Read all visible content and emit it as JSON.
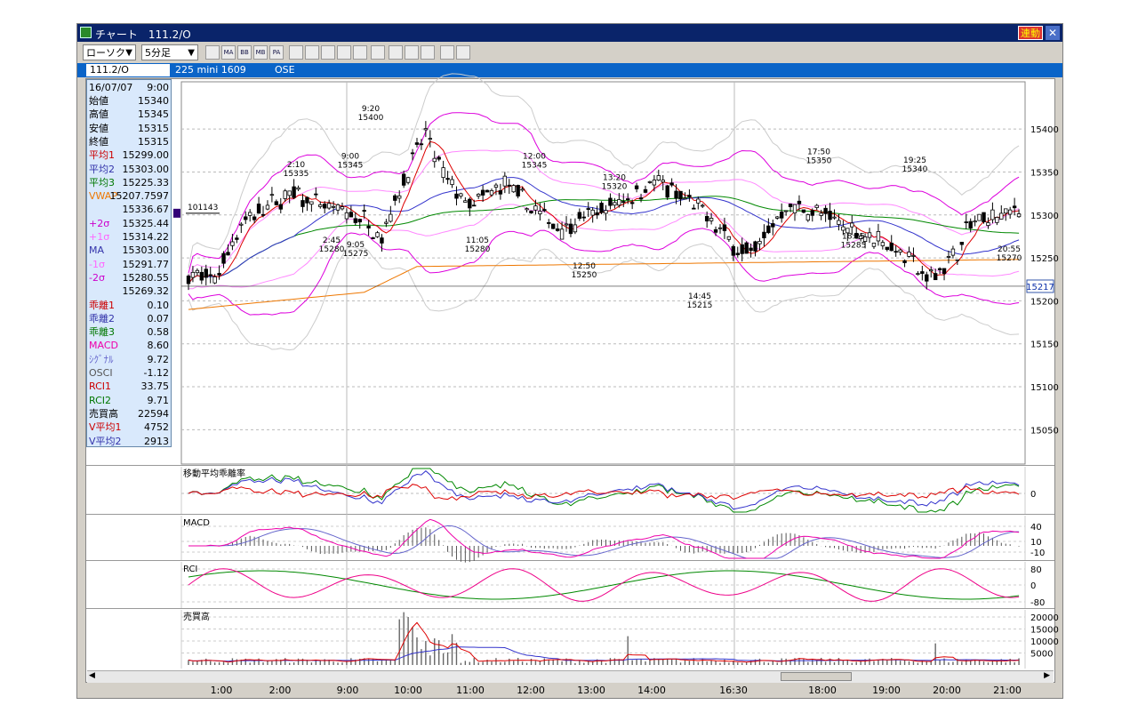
{
  "window": {
    "title": "チャート　111.2/O",
    "link_button": "連動",
    "close_glyph": "✕"
  },
  "toolbar": {
    "chart_type": "ローソク",
    "interval": "5分足",
    "icons": [
      "chart-settings-icon",
      "ma-icon",
      "bb-icon",
      "mb-icon",
      "pa-icon",
      "line-chart-icon",
      "candle-chart-icon",
      "fib-icon",
      "zoom-icon",
      "analysis-icon",
      "bars-icon",
      "pen-icon",
      "cursor-icon",
      "eraser-icon",
      "search-icon",
      "tool-icon"
    ],
    "icon_labels": [
      "",
      "MA",
      "BB",
      "MB",
      "PA",
      "",
      "",
      "",
      "",
      "",
      "",
      "",
      "",
      "",
      "",
      ""
    ]
  },
  "infobar": {
    "symbol": "111.2/O",
    "instrument": "225 mini 1609",
    "exchange": "OSE"
  },
  "info_panel": {
    "date": "16/07/07",
    "time": "9:00",
    "rows": [
      {
        "label": "始値",
        "value": "15340",
        "color": "#000000"
      },
      {
        "label": "高値",
        "value": "15345",
        "color": "#000000"
      },
      {
        "label": "安値",
        "value": "15315",
        "color": "#000000"
      },
      {
        "label": "終値",
        "value": "15315",
        "color": "#000000"
      },
      {
        "label": "平均1",
        "value": "15299.00",
        "color": "#cc0000"
      },
      {
        "label": "平均2",
        "value": "15303.00",
        "color": "#3333aa"
      },
      {
        "label": "平均3",
        "value": "15225.33",
        "color": "#007700"
      },
      {
        "label": "VWAP",
        "value": "15207.7597",
        "color": "#ee7700"
      },
      {
        "label": "",
        "value": "15336.67",
        "color": "#000000"
      },
      {
        "label": "+2σ",
        "value": "15325.44",
        "color": "#cc00cc"
      },
      {
        "label": "+1σ",
        "value": "15314.22",
        "color": "#ff66ff"
      },
      {
        "label": "MA",
        "value": "15303.00",
        "color": "#3333aa"
      },
      {
        "label": "-1σ",
        "value": "15291.77",
        "color": "#ff66ff"
      },
      {
        "label": "-2σ",
        "value": "15280.55",
        "color": "#cc00cc"
      },
      {
        "label": "",
        "value": "15269.32",
        "color": "#000000"
      },
      {
        "label": "乖離1",
        "value": "0.10",
        "color": "#cc0000"
      },
      {
        "label": "乖離2",
        "value": "0.07",
        "color": "#3333aa"
      },
      {
        "label": "乖離3",
        "value": "0.58",
        "color": "#007700"
      },
      {
        "label": "MACD",
        "value": "8.60",
        "color": "#ee00aa"
      },
      {
        "label": "ｼｸﾞﾅﾙ",
        "value": "9.72",
        "color": "#6666cc"
      },
      {
        "label": "OSCI",
        "value": "-1.12",
        "color": "#555555"
      },
      {
        "label": "RCI1",
        "value": "33.75",
        "color": "#cc0000"
      },
      {
        "label": "RCI2",
        "value": "9.71",
        "color": "#007700"
      },
      {
        "label": "売買高",
        "value": "22594",
        "color": "#000000"
      },
      {
        "label": "V平均1",
        "value": "4752",
        "color": "#cc0000"
      },
      {
        "label": "V平均2",
        "value": "2913",
        "color": "#3333aa"
      }
    ]
  },
  "colors": {
    "candle": "#000000",
    "ma1": "#dd0000",
    "ma2": "#3333cc",
    "ma3": "#008800",
    "vwap": "#ee7700",
    "bb2": "#dd00dd",
    "bb1": "#ff88ff",
    "bb3": "#cccccc",
    "macd": "#ee00aa",
    "signal": "#6666cc",
    "rci1": "#ee0088",
    "rci2": "#008800"
  },
  "chart_data": {
    "type": "candlestick",
    "x_tick_labels": [
      "1:00",
      "2:00",
      "9:00",
      "10:00",
      "11:00",
      "12:00",
      "13:00",
      "14:00",
      "16:30",
      "18:00",
      "19:00",
      "20:00",
      "21:00"
    ],
    "price_ticks": [
      "15400",
      "15350",
      "15300",
      "15250",
      "15200",
      "15150",
      "15100",
      "15050"
    ],
    "price_range": [
      15010,
      15455
    ],
    "current_price": "15217",
    "line_marker": "101143",
    "annotations": [
      {
        "time": "2:10",
        "price": "15335",
        "pos": "above"
      },
      {
        "time": "2:45",
        "price": "15280",
        "pos": "below"
      },
      {
        "time": "9:00",
        "price": "15345",
        "pos": "above"
      },
      {
        "time": "9:05",
        "price": "15275",
        "pos": "below"
      },
      {
        "time": "9:20",
        "price": "15400",
        "pos": "above"
      },
      {
        "time": "11:05",
        "price": "15280",
        "pos": "below"
      },
      {
        "time": "12:00",
        "price": "15345",
        "pos": "above"
      },
      {
        "time": "12:50",
        "price": "15250",
        "pos": "below"
      },
      {
        "time": "13:20",
        "price": "15320",
        "pos": "above"
      },
      {
        "time": "14:45",
        "price": "15215",
        "pos": "below"
      },
      {
        "time": "17:50",
        "price": "15350",
        "pos": "above"
      },
      {
        "time": "18:25",
        "price": "15285",
        "pos": "below"
      },
      {
        "time": "19:25",
        "price": "15340",
        "pos": "above"
      },
      {
        "time": "20:55",
        "price": "15270",
        "pos": "below"
      }
    ],
    "sub_panels": [
      {
        "title": "移動平均乖離率",
        "ticks": [
          "0"
        ]
      },
      {
        "title": "MACD",
        "ticks": [
          "40",
          "10",
          "-10"
        ]
      },
      {
        "title": "RCI",
        "ticks": [
          "80",
          "0",
          "-80"
        ]
      },
      {
        "title": "売買高",
        "ticks": [
          "20000",
          "15000",
          "10000",
          "5000"
        ]
      }
    ]
  }
}
